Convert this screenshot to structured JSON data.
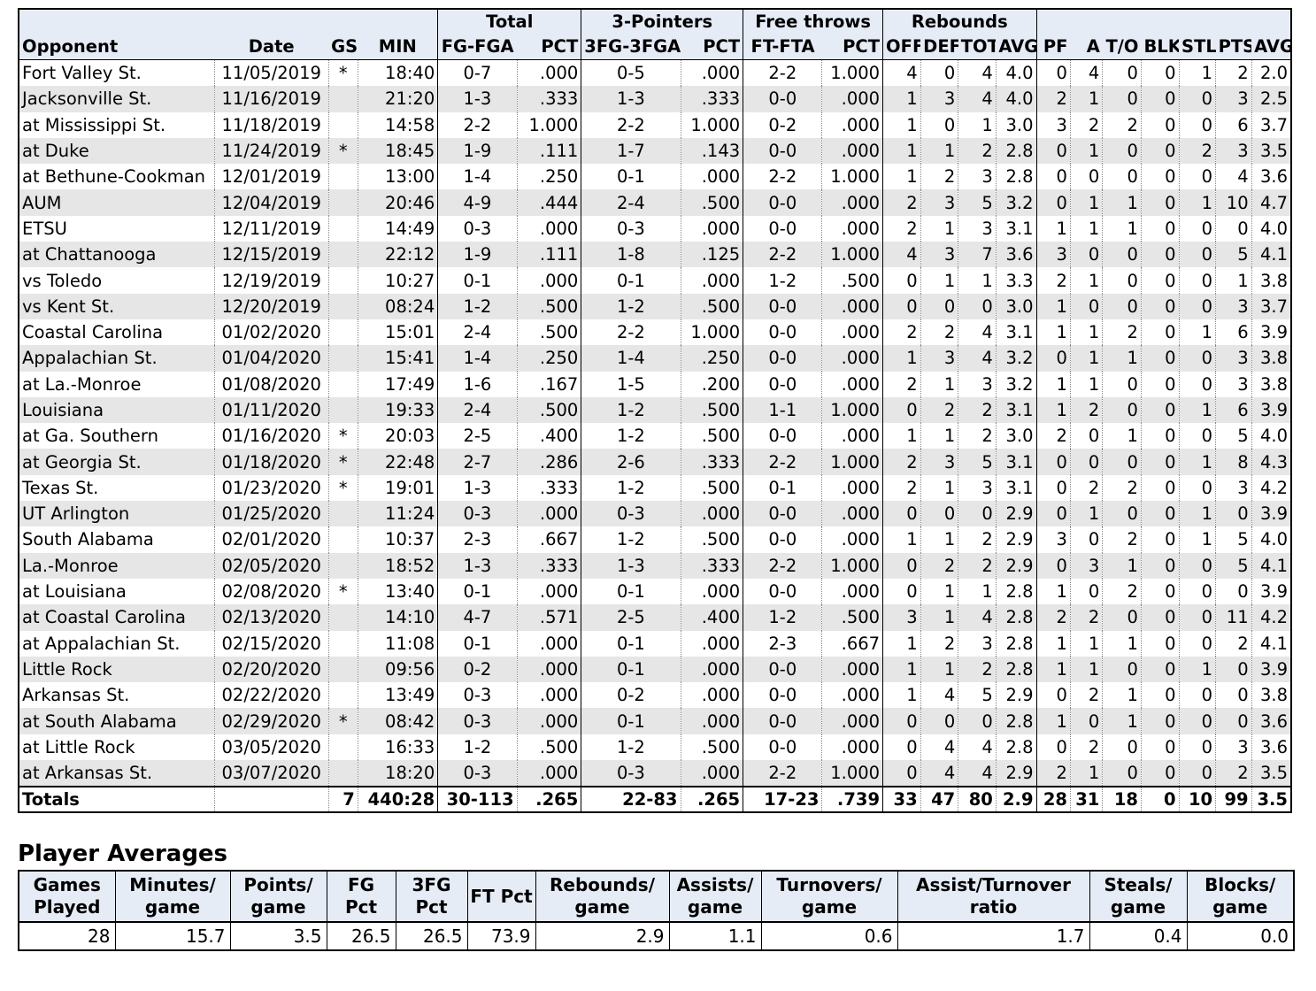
{
  "game_log": {
    "group_headers": {
      "total": "Total",
      "three": "3-Pointers",
      "ft": "Free throws",
      "reb": "Rebounds"
    },
    "columns": [
      "Opponent",
      "Date",
      "GS",
      "MIN",
      "FG-FGA",
      "PCT",
      "3FG-3FGA",
      "PCT",
      "FT-FTA",
      "PCT",
      "OFF",
      "DEF",
      "TOT",
      "AVG",
      "PF",
      "A",
      "T/O",
      "BLK",
      "STL",
      "PTS",
      "AVG"
    ],
    "rows": [
      [
        "Fort Valley St.",
        "11/05/2019",
        "*",
        "18:40",
        "0-7",
        ".000",
        "0-5",
        ".000",
        "2-2",
        "1.000",
        "4",
        "0",
        "4",
        "4.0",
        "0",
        "4",
        "0",
        "0",
        "1",
        "2",
        "2.0"
      ],
      [
        "Jacksonville St.",
        "11/16/2019",
        "",
        "21:20",
        "1-3",
        ".333",
        "1-3",
        ".333",
        "0-0",
        ".000",
        "1",
        "3",
        "4",
        "4.0",
        "2",
        "1",
        "0",
        "0",
        "0",
        "3",
        "2.5"
      ],
      [
        "at Mississippi St.",
        "11/18/2019",
        "",
        "14:58",
        "2-2",
        "1.000",
        "2-2",
        "1.000",
        "0-2",
        ".000",
        "1",
        "0",
        "1",
        "3.0",
        "3",
        "2",
        "2",
        "0",
        "0",
        "6",
        "3.7"
      ],
      [
        "at Duke",
        "11/24/2019",
        "*",
        "18:45",
        "1-9",
        ".111",
        "1-7",
        ".143",
        "0-0",
        ".000",
        "1",
        "1",
        "2",
        "2.8",
        "0",
        "1",
        "0",
        "0",
        "2",
        "3",
        "3.5"
      ],
      [
        "at Bethune-Cookman",
        "12/01/2019",
        "",
        "13:00",
        "1-4",
        ".250",
        "0-1",
        ".000",
        "2-2",
        "1.000",
        "1",
        "2",
        "3",
        "2.8",
        "0",
        "0",
        "0",
        "0",
        "0",
        "4",
        "3.6"
      ],
      [
        "AUM",
        "12/04/2019",
        "",
        "20:46",
        "4-9",
        ".444",
        "2-4",
        ".500",
        "0-0",
        ".000",
        "2",
        "3",
        "5",
        "3.2",
        "0",
        "1",
        "1",
        "0",
        "1",
        "10",
        "4.7"
      ],
      [
        "ETSU",
        "12/11/2019",
        "",
        "14:49",
        "0-3",
        ".000",
        "0-3",
        ".000",
        "0-0",
        ".000",
        "2",
        "1",
        "3",
        "3.1",
        "1",
        "1",
        "1",
        "0",
        "0",
        "0",
        "4.0"
      ],
      [
        "at Chattanooga",
        "12/15/2019",
        "",
        "22:12",
        "1-9",
        ".111",
        "1-8",
        ".125",
        "2-2",
        "1.000",
        "4",
        "3",
        "7",
        "3.6",
        "3",
        "0",
        "0",
        "0",
        "0",
        "5",
        "4.1"
      ],
      [
        "vs Toledo",
        "12/19/2019",
        "",
        "10:27",
        "0-1",
        ".000",
        "0-1",
        ".000",
        "1-2",
        ".500",
        "0",
        "1",
        "1",
        "3.3",
        "2",
        "1",
        "0",
        "0",
        "0",
        "1",
        "3.8"
      ],
      [
        "vs Kent St.",
        "12/20/2019",
        "",
        "08:24",
        "1-2",
        ".500",
        "1-2",
        ".500",
        "0-0",
        ".000",
        "0",
        "0",
        "0",
        "3.0",
        "1",
        "0",
        "0",
        "0",
        "0",
        "3",
        "3.7"
      ],
      [
        "Coastal Carolina",
        "01/02/2020",
        "",
        "15:01",
        "2-4",
        ".500",
        "2-2",
        "1.000",
        "0-0",
        ".000",
        "2",
        "2",
        "4",
        "3.1",
        "1",
        "1",
        "2",
        "0",
        "1",
        "6",
        "3.9"
      ],
      [
        "Appalachian St.",
        "01/04/2020",
        "",
        "15:41",
        "1-4",
        ".250",
        "1-4",
        ".250",
        "0-0",
        ".000",
        "1",
        "3",
        "4",
        "3.2",
        "0",
        "1",
        "1",
        "0",
        "0",
        "3",
        "3.8"
      ],
      [
        "at La.-Monroe",
        "01/08/2020",
        "",
        "17:49",
        "1-6",
        ".167",
        "1-5",
        ".200",
        "0-0",
        ".000",
        "2",
        "1",
        "3",
        "3.2",
        "1",
        "1",
        "0",
        "0",
        "0",
        "3",
        "3.8"
      ],
      [
        "Louisiana",
        "01/11/2020",
        "",
        "19:33",
        "2-4",
        ".500",
        "1-2",
        ".500",
        "1-1",
        "1.000",
        "0",
        "2",
        "2",
        "3.1",
        "1",
        "2",
        "0",
        "0",
        "1",
        "6",
        "3.9"
      ],
      [
        "at Ga. Southern",
        "01/16/2020",
        "*",
        "20:03",
        "2-5",
        ".400",
        "1-2",
        ".500",
        "0-0",
        ".000",
        "1",
        "1",
        "2",
        "3.0",
        "2",
        "0",
        "1",
        "0",
        "0",
        "5",
        "4.0"
      ],
      [
        "at Georgia St.",
        "01/18/2020",
        "*",
        "22:48",
        "2-7",
        ".286",
        "2-6",
        ".333",
        "2-2",
        "1.000",
        "2",
        "3",
        "5",
        "3.1",
        "0",
        "0",
        "0",
        "0",
        "1",
        "8",
        "4.3"
      ],
      [
        "Texas St.",
        "01/23/2020",
        "*",
        "19:01",
        "1-3",
        ".333",
        "1-2",
        ".500",
        "0-1",
        ".000",
        "2",
        "1",
        "3",
        "3.1",
        "0",
        "2",
        "2",
        "0",
        "0",
        "3",
        "4.2"
      ],
      [
        "UT Arlington",
        "01/25/2020",
        "",
        "11:24",
        "0-3",
        ".000",
        "0-3",
        ".000",
        "0-0",
        ".000",
        "0",
        "0",
        "0",
        "2.9",
        "0",
        "1",
        "0",
        "0",
        "1",
        "0",
        "3.9"
      ],
      [
        "South Alabama",
        "02/01/2020",
        "",
        "10:37",
        "2-3",
        ".667",
        "1-2",
        ".500",
        "0-0",
        ".000",
        "1",
        "1",
        "2",
        "2.9",
        "3",
        "0",
        "2",
        "0",
        "1",
        "5",
        "4.0"
      ],
      [
        "La.-Monroe",
        "02/05/2020",
        "",
        "18:52",
        "1-3",
        ".333",
        "1-3",
        ".333",
        "2-2",
        "1.000",
        "0",
        "2",
        "2",
        "2.9",
        "0",
        "3",
        "1",
        "0",
        "0",
        "5",
        "4.1"
      ],
      [
        "at Louisiana",
        "02/08/2020",
        "*",
        "13:40",
        "0-1",
        ".000",
        "0-1",
        ".000",
        "0-0",
        ".000",
        "0",
        "1",
        "1",
        "2.8",
        "1",
        "0",
        "2",
        "0",
        "0",
        "0",
        "3.9"
      ],
      [
        "at Coastal Carolina",
        "02/13/2020",
        "",
        "14:10",
        "4-7",
        ".571",
        "2-5",
        ".400",
        "1-2",
        ".500",
        "3",
        "1",
        "4",
        "2.8",
        "2",
        "2",
        "0",
        "0",
        "0",
        "11",
        "4.2"
      ],
      [
        "at Appalachian St.",
        "02/15/2020",
        "",
        "11:08",
        "0-1",
        ".000",
        "0-1",
        ".000",
        "2-3",
        ".667",
        "1",
        "2",
        "3",
        "2.8",
        "1",
        "1",
        "1",
        "0",
        "0",
        "2",
        "4.1"
      ],
      [
        "Little Rock",
        "02/20/2020",
        "",
        "09:56",
        "0-2",
        ".000",
        "0-1",
        ".000",
        "0-0",
        ".000",
        "1",
        "1",
        "2",
        "2.8",
        "1",
        "1",
        "0",
        "0",
        "1",
        "0",
        "3.9"
      ],
      [
        "Arkansas St.",
        "02/22/2020",
        "",
        "13:49",
        "0-3",
        ".000",
        "0-2",
        ".000",
        "0-0",
        ".000",
        "1",
        "4",
        "5",
        "2.9",
        "0",
        "2",
        "1",
        "0",
        "0",
        "0",
        "3.8"
      ],
      [
        "at South Alabama",
        "02/29/2020",
        "*",
        "08:42",
        "0-3",
        ".000",
        "0-1",
        ".000",
        "0-0",
        ".000",
        "0",
        "0",
        "0",
        "2.8",
        "1",
        "0",
        "1",
        "0",
        "0",
        "0",
        "3.6"
      ],
      [
        "at Little Rock",
        "03/05/2020",
        "",
        "16:33",
        "1-2",
        ".500",
        "1-2",
        ".500",
        "0-0",
        ".000",
        "0",
        "4",
        "4",
        "2.8",
        "0",
        "2",
        "0",
        "0",
        "0",
        "3",
        "3.6"
      ],
      [
        "at Arkansas St.",
        "03/07/2020",
        "",
        "18:20",
        "0-3",
        ".000",
        "0-3",
        ".000",
        "2-2",
        "1.000",
        "0",
        "4",
        "4",
        "2.9",
        "2",
        "1",
        "0",
        "0",
        "0",
        "2",
        "3.5"
      ]
    ],
    "totals": [
      "Totals",
      "",
      "7",
      "440:28",
      "30-113",
      ".265",
      "22-83",
      ".265",
      "17-23",
      ".739",
      "33",
      "47",
      "80",
      "2.9",
      "28",
      "31",
      "18",
      "0",
      "10",
      "99",
      "3.5"
    ]
  },
  "averages": {
    "title": "Player Averages",
    "headers": [
      "Games Played",
      "Minutes/ game",
      "Points/ game",
      "FG Pct",
      "3FG Pct",
      "FT Pct",
      "Rebounds/ game",
      "Assists/ game",
      "Turnovers/ game",
      "Assist/Turnover ratio",
      "Steals/ game",
      "Blocks/ game"
    ],
    "values": [
      "28",
      "15.7",
      "3.5",
      "26.5",
      "26.5",
      "73.9",
      "2.9",
      "1.1",
      "0.6",
      "1.7",
      "0.4",
      "0.0"
    ]
  }
}
